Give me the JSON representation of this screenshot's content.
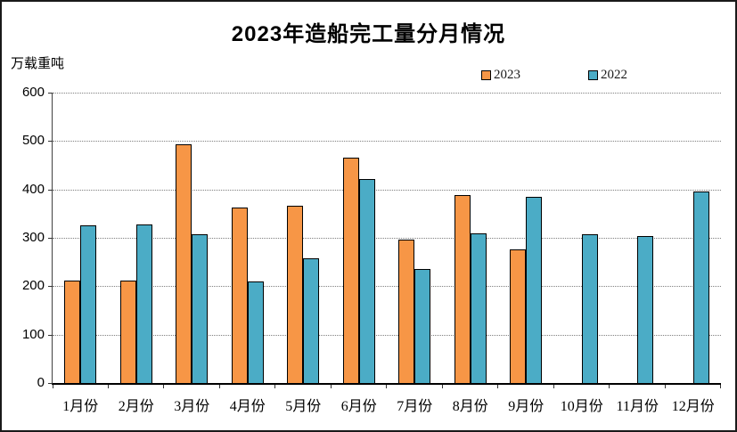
{
  "title": "2023年造船完工量分月情况",
  "unit_label": "万载重吨",
  "legend": {
    "items": [
      {
        "label": "2023",
        "color": "#F79646"
      },
      {
        "label": "2022",
        "color": "#4BACC6"
      }
    ]
  },
  "colors": {
    "series_2023": "#F79646",
    "series_2022": "#4BACC6",
    "bar_outline": "#000000",
    "gridline": "#7f7f7f",
    "frame_border": "#1a1a1a"
  },
  "chart_data": {
    "type": "bar",
    "title": "2023年造船完工量分月情况",
    "ylabel": "万载重吨",
    "categories": [
      "1月份",
      "2月份",
      "3月份",
      "4月份",
      "5月份",
      "6月份",
      "7月份",
      "8月份",
      "9月份",
      "10月份",
      "11月份",
      "12月份"
    ],
    "series": [
      {
        "name": "2023",
        "color": "#F79646",
        "values": [
          211,
          211,
          494,
          362,
          367,
          465,
          296,
          389,
          276,
          null,
          null,
          null
        ]
      },
      {
        "name": "2022",
        "color": "#4BACC6",
        "values": [
          325,
          327,
          307,
          210,
          257,
          421,
          235,
          310,
          385,
          307,
          303,
          396
        ]
      }
    ],
    "ylim": [
      0,
      600
    ],
    "yticks": [
      0,
      100,
      200,
      300,
      400,
      500,
      600
    ],
    "grid": true,
    "legend_position": "top-center-right"
  }
}
